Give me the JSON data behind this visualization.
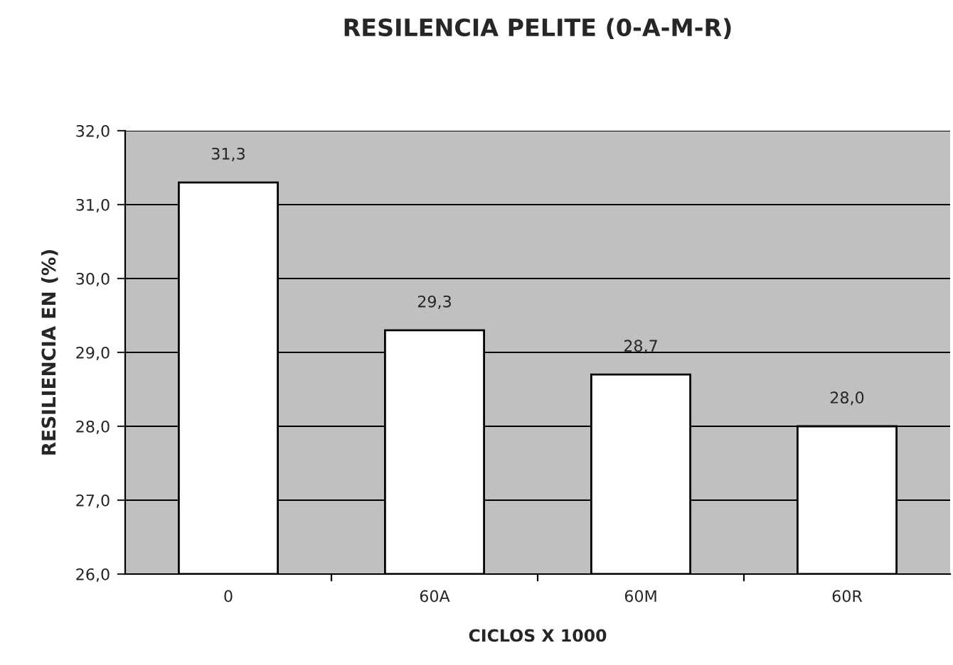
{
  "chart_data": {
    "type": "bar",
    "title": "RESILENCIA PELITE (0-A-M-R)",
    "xlabel": "CICLOS X 1000",
    "ylabel": "RESILIENCIA EN (%)",
    "categories": [
      "0",
      "60A",
      "60M",
      "60R"
    ],
    "values": [
      31.3,
      29.3,
      28.7,
      28.0
    ],
    "value_labels": [
      "31,3",
      "29,3",
      "28,7",
      "28,0"
    ],
    "color": "#ffffff",
    "ylim": [
      26,
      32
    ],
    "yticks": [
      {
        "value": 26,
        "label": "26,0"
      },
      {
        "value": 27,
        "label": "27,0"
      },
      {
        "value": 28,
        "label": "28,0"
      },
      {
        "value": 29,
        "label": "29,0"
      },
      {
        "value": 30,
        "label": "30,0"
      },
      {
        "value": 31,
        "label": "31,0"
      },
      {
        "value": 32,
        "label": "32,0"
      }
    ],
    "grid": "y"
  }
}
